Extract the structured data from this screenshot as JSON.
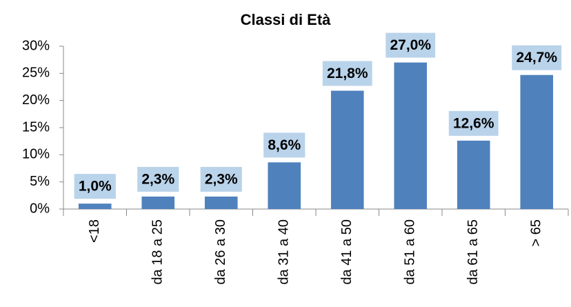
{
  "chart_data": {
    "type": "bar",
    "title": "Classi di Età",
    "categories": [
      "<18",
      "da 18 a 25",
      "da 26 a 30",
      "da 31 a 40",
      "da 41 a 50",
      "da 51 a 60",
      "da 61 a 65",
      "> 65"
    ],
    "values": [
      1.0,
      2.3,
      2.3,
      8.6,
      21.8,
      27.0,
      12.6,
      24.7
    ],
    "value_labels": [
      "1,0%",
      "2,3%",
      "2,3%",
      "8,6%",
      "21,8%",
      "27,0%",
      "12,6%",
      "24,7%"
    ],
    "color": "#4f81bd",
    "label_box_color": "#b9d3ea",
    "ylim": [
      0,
      30
    ],
    "yticks": [
      {
        "value": 0,
        "label": "0%"
      },
      {
        "value": 5,
        "label": "5%"
      },
      {
        "value": 10,
        "label": "10%"
      },
      {
        "value": 15,
        "label": "15%"
      },
      {
        "value": 20,
        "label": "20%"
      },
      {
        "value": 25,
        "label": "25%"
      },
      {
        "value": 30,
        "label": "30%"
      }
    ],
    "grid": false
  }
}
